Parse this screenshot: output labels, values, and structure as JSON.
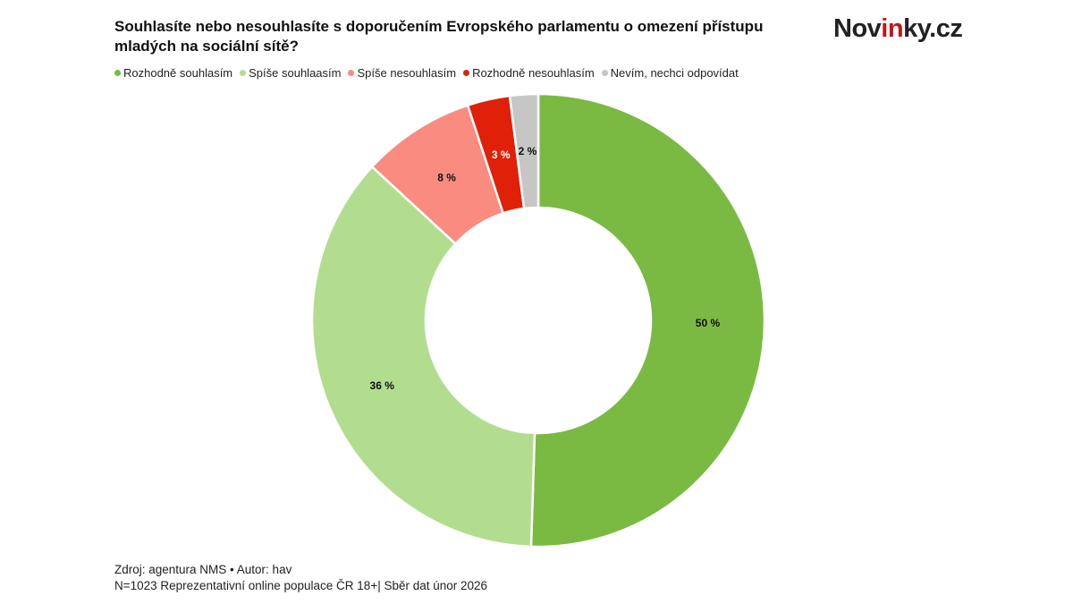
{
  "logo": {
    "text_before": "Nov",
    "text_accent": "in",
    "text_after": "ky.cz"
  },
  "chart_data": {
    "type": "pie",
    "variant": "donut",
    "title": "Souhlasíte nebo nesouhlasíte s doporučením Evropského parlamentu o omezení přístupu mladých na sociální sítě?",
    "legend_position": "top-left",
    "categories": [
      "Rozhodně souhlasím",
      "Spíše souhlaasím",
      "Spíše nesouhlasím",
      "Rozhodně nesouhlasím",
      "Nevím, nechci odpovídat"
    ],
    "values": [
      50,
      36,
      8,
      3,
      2
    ],
    "labels": [
      "50 %",
      "36 %",
      "8 %",
      "3 %",
      "2 %"
    ],
    "colors": [
      "#7aba43",
      "#b2dd8f",
      "#f98b80",
      "#e02008",
      "#c6c6c6"
    ],
    "label_colors": [
      "#111111",
      "#111111",
      "#111111",
      "#ffffff",
      "#111111"
    ]
  },
  "footer": {
    "source": "Zdroj: agentura NMS • Autor: hav",
    "note": "N=1023 Reprezentativní online populace ČR 18+| Sběr dat únor 2026"
  }
}
